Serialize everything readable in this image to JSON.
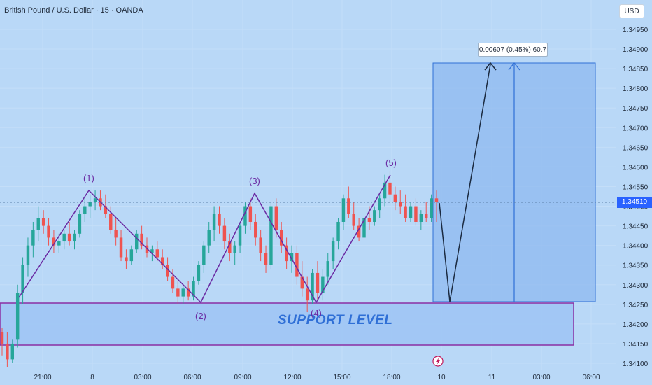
{
  "header": {
    "title": "British Pound / U.S. Dollar · 15 · OANDA",
    "currency_button": "USD"
  },
  "price_tag": "1.34510",
  "measure_label": "0.00607 (0.45%) 60.7",
  "support_label": "SUPPORT LEVEL",
  "wave_labels": [
    "(1)",
    "(2)",
    "(3)",
    "(4)",
    "(5)"
  ],
  "event_icon": "lightning-icon",
  "colors": {
    "background": "#b9d8f7",
    "bull": "#26a69a",
    "bear": "#ef5350",
    "wave": "#6a2aa3",
    "zone_fill": "#9ec4f4",
    "zone_border": "#8b2fa3",
    "target_box": "#8fbaf0",
    "price_tag": "#2962ff"
  },
  "chart_data": {
    "type": "candlestick",
    "symbol": "British Pound / U.S. Dollar",
    "interval": "15",
    "source": "OANDA",
    "y_ticks": [
      "1.34950",
      "1.34900",
      "1.34850",
      "1.34800",
      "1.34750",
      "1.34700",
      "1.34650",
      "1.34600",
      "1.34550",
      "1.34500",
      "1.34450",
      "1.34400",
      "1.34350",
      "1.34300",
      "1.34250",
      "1.34200",
      "1.34150",
      "1.34100"
    ],
    "x_ticks": [
      "21:00",
      "8",
      "03:00",
      "06:00",
      "09:00",
      "12:00",
      "15:00",
      "18:00",
      "10",
      "11",
      "03:00",
      "06:00"
    ],
    "ylim": [
      1.3408,
      1.3498
    ],
    "last_price": 1.3451,
    "support_zone": [
      1.34145,
      1.34252
    ],
    "wave_points": [
      {
        "label": "(1)",
        "price": 1.3454
      },
      {
        "label": "(2)",
        "price": 1.3425
      },
      {
        "label": "(3)",
        "price": 1.3453
      },
      {
        "label": "(4)",
        "price": 1.3425
      },
      {
        "label": "(5)",
        "price": 1.3458
      }
    ],
    "projection": {
      "start": 1.3451,
      "low": 1.34255,
      "target": 1.34862
    },
    "measure": {
      "change": 0.00607,
      "percent": 0.45,
      "pips": 60.7
    },
    "candles": [
      [
        1.3418,
        1.3419,
        1.3412,
        1.3415
      ],
      [
        1.3415,
        1.3418,
        1.3409,
        1.3411
      ],
      [
        1.3411,
        1.3416,
        1.341,
        1.3415
      ],
      [
        1.3416,
        1.343,
        1.3414,
        1.3428
      ],
      [
        1.3428,
        1.3437,
        1.3425,
        1.3435
      ],
      [
        1.3435,
        1.3442,
        1.3432,
        1.344
      ],
      [
        1.344,
        1.3446,
        1.3437,
        1.3444
      ],
      [
        1.3444,
        1.345,
        1.3441,
        1.3447
      ],
      [
        1.3447,
        1.3449,
        1.3443,
        1.3445
      ],
      [
        1.3445,
        1.3447,
        1.344,
        1.3442
      ],
      [
        1.3442,
        1.3444,
        1.3438,
        1.344
      ],
      [
        1.344,
        1.3443,
        1.3438,
        1.3441
      ],
      [
        1.3441,
        1.3444,
        1.3439,
        1.3443
      ],
      [
        1.3443,
        1.3446,
        1.344,
        1.3441
      ],
      [
        1.3441,
        1.3444,
        1.3439,
        1.3443
      ],
      [
        1.3443,
        1.3449,
        1.3442,
        1.3448
      ],
      [
        1.3448,
        1.3452,
        1.3446,
        1.345
      ],
      [
        1.345,
        1.3453,
        1.3447,
        1.3451
      ],
      [
        1.3451,
        1.3454,
        1.3449,
        1.3452
      ],
      [
        1.3452,
        1.3454,
        1.3449,
        1.345
      ],
      [
        1.345,
        1.3453,
        1.3447,
        1.3448
      ],
      [
        1.3448,
        1.345,
        1.3443,
        1.3444
      ],
      [
        1.3444,
        1.3447,
        1.344,
        1.3442
      ],
      [
        1.3442,
        1.3444,
        1.3436,
        1.3437
      ],
      [
        1.3437,
        1.3439,
        1.3434,
        1.3436
      ],
      [
        1.3436,
        1.344,
        1.3435,
        1.3439
      ],
      [
        1.3439,
        1.3444,
        1.3438,
        1.3443
      ],
      [
        1.3443,
        1.3445,
        1.3439,
        1.344
      ],
      [
        1.344,
        1.3442,
        1.3437,
        1.3438
      ],
      [
        1.3438,
        1.344,
        1.3436,
        1.3439
      ],
      [
        1.3439,
        1.3441,
        1.3436,
        1.3437
      ],
      [
        1.3437,
        1.3439,
        1.3434,
        1.3435
      ],
      [
        1.3435,
        1.3437,
        1.3431,
        1.3432
      ],
      [
        1.3432,
        1.3434,
        1.3428,
        1.3429
      ],
      [
        1.3429,
        1.3431,
        1.3425,
        1.3427
      ],
      [
        1.3427,
        1.343,
        1.3425,
        1.3429
      ],
      [
        1.3429,
        1.3431,
        1.3426,
        1.3427
      ],
      [
        1.3427,
        1.3432,
        1.3426,
        1.3431
      ],
      [
        1.3431,
        1.3436,
        1.343,
        1.3435
      ],
      [
        1.3435,
        1.3441,
        1.3433,
        1.344
      ],
      [
        1.344,
        1.3446,
        1.3438,
        1.3444
      ],
      [
        1.3444,
        1.345,
        1.3441,
        1.3448
      ],
      [
        1.3448,
        1.345,
        1.3443,
        1.3445
      ],
      [
        1.3445,
        1.3447,
        1.3439,
        1.3441
      ],
      [
        1.3441,
        1.3443,
        1.3436,
        1.3438
      ],
      [
        1.3438,
        1.3441,
        1.3435,
        1.344
      ],
      [
        1.344,
        1.3446,
        1.3438,
        1.3445
      ],
      [
        1.3445,
        1.3451,
        1.3443,
        1.345
      ],
      [
        1.345,
        1.3452,
        1.3444,
        1.3446
      ],
      [
        1.3446,
        1.3448,
        1.344,
        1.3442
      ],
      [
        1.3442,
        1.3444,
        1.3436,
        1.3438
      ],
      [
        1.3438,
        1.344,
        1.3433,
        1.3435
      ],
      [
        1.3435,
        1.3451,
        1.3434,
        1.345
      ],
      [
        1.345,
        1.3452,
        1.3442,
        1.3444
      ],
      [
        1.3444,
        1.3446,
        1.3438,
        1.344
      ],
      [
        1.344,
        1.3442,
        1.3434,
        1.3436
      ],
      [
        1.3436,
        1.344,
        1.3433,
        1.3438
      ],
      [
        1.3438,
        1.344,
        1.343,
        1.3432
      ],
      [
        1.3432,
        1.3436,
        1.3427,
        1.3429
      ],
      [
        1.3429,
        1.3432,
        1.3423,
        1.3426
      ],
      [
        1.3426,
        1.3434,
        1.3425,
        1.3433
      ],
      [
        1.3433,
        1.3436,
        1.3426,
        1.3428
      ],
      [
        1.3428,
        1.3434,
        1.3426,
        1.3432
      ],
      [
        1.3432,
        1.3438,
        1.343,
        1.3436
      ],
      [
        1.3436,
        1.3442,
        1.3434,
        1.3441
      ],
      [
        1.3441,
        1.3447,
        1.3439,
        1.3446
      ],
      [
        1.3446,
        1.3453,
        1.3444,
        1.3452
      ],
      [
        1.3452,
        1.3455,
        1.3447,
        1.3448
      ],
      [
        1.3448,
        1.3451,
        1.3444,
        1.3445
      ],
      [
        1.3445,
        1.3447,
        1.3441,
        1.3442
      ],
      [
        1.3442,
        1.3448,
        1.344,
        1.3447
      ],
      [
        1.3447,
        1.345,
        1.3444,
        1.3446
      ],
      [
        1.3446,
        1.345,
        1.3445,
        1.3449
      ],
      [
        1.3449,
        1.3453,
        1.3447,
        1.3452
      ],
      [
        1.3452,
        1.3458,
        1.345,
        1.3456
      ],
      [
        1.3456,
        1.3459,
        1.3451,
        1.3453
      ],
      [
        1.3453,
        1.3455,
        1.3449,
        1.3451
      ],
      [
        1.3451,
        1.3454,
        1.3448,
        1.345
      ],
      [
        1.345,
        1.3453,
        1.3446,
        1.3447
      ],
      [
        1.3447,
        1.3451,
        1.3446,
        1.345
      ],
      [
        1.345,
        1.3452,
        1.3445,
        1.3446
      ],
      [
        1.3446,
        1.3449,
        1.3444,
        1.3448
      ],
      [
        1.3448,
        1.3451,
        1.3446,
        1.3447
      ],
      [
        1.3447,
        1.3453,
        1.3446,
        1.3452
      ],
      [
        1.3452,
        1.3454,
        1.3446,
        1.3451
      ]
    ]
  }
}
